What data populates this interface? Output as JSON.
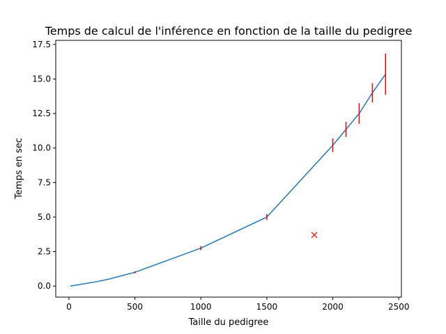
{
  "chart_data": {
    "type": "line",
    "title": "Temps de calcul de l'inférence en fonction de la taille du pedigree",
    "xlabel": "Taille du pedigree",
    "ylabel": "Temps en sec",
    "xlim": [
      -100,
      2520
    ],
    "ylim": [
      -0.8,
      17.8
    ],
    "x_ticks": [
      0,
      500,
      1000,
      1500,
      2000,
      2500
    ],
    "x_tick_labels": [
      "0",
      "500",
      "1000",
      "1500",
      "2000",
      "2500"
    ],
    "y_ticks": [
      0.0,
      2.5,
      5.0,
      7.5,
      10.0,
      12.5,
      15.0,
      17.5
    ],
    "y_tick_labels": [
      "0.0",
      "2.5",
      "5.0",
      "7.5",
      "10.0",
      "12.5",
      "15.0",
      "17.5"
    ],
    "grid": false,
    "series": [
      {
        "color": "#1f77b4",
        "error_color": "#ff0000",
        "points": [
          {
            "x": 10,
            "y": 0.0,
            "err": 0.0
          },
          {
            "x": 200,
            "y": 0.3,
            "err": 0.0
          },
          {
            "x": 300,
            "y": 0.5,
            "err": 0.0
          },
          {
            "x": 500,
            "y": 1.0,
            "err": 0.08
          },
          {
            "x": 1000,
            "y": 2.75,
            "err": 0.15
          },
          {
            "x": 1500,
            "y": 5.0,
            "err": 0.22
          },
          {
            "x": 2000,
            "y": 10.2,
            "err": 0.5
          },
          {
            "x": 2100,
            "y": 11.35,
            "err": 0.55
          },
          {
            "x": 2200,
            "y": 12.5,
            "err": 0.75
          },
          {
            "x": 2300,
            "y": 14.0,
            "err": 0.7
          },
          {
            "x": 2400,
            "y": 15.35,
            "err": 1.5
          }
        ]
      }
    ],
    "markers": [
      {
        "x": 1860,
        "y": 3.7,
        "symbol": "x",
        "color": "#ff0000"
      }
    ]
  }
}
